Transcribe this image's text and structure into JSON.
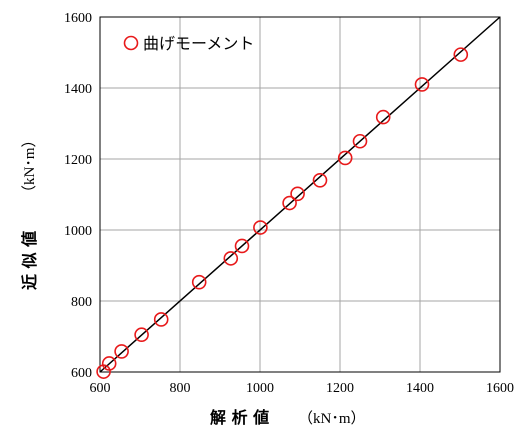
{
  "chart_data": {
    "type": "scatter",
    "xlabel": "解 析 値",
    "ylabel": "近 似 値",
    "unit": "（kN･m）",
    "xlim": [
      600,
      1600
    ],
    "ylim": [
      600,
      1600
    ],
    "x_ticks": [
      "600",
      "800",
      "1000",
      "1200",
      "1400",
      "1600"
    ],
    "y_ticks": [
      "600",
      "800",
      "1000",
      "1200",
      "1400",
      "1600"
    ],
    "grid": true,
    "legend_position": "top-left",
    "reference_line": "y = x",
    "colors": {
      "marker": "#e8191a",
      "line": "#000000",
      "grid": "#a6a6a6"
    },
    "series": [
      {
        "name": "曲げモーメント",
        "marker": "open-circle",
        "points": [
          [
            609,
            601
          ],
          [
            623,
            624
          ],
          [
            654,
            658
          ],
          [
            704,
            705
          ],
          [
            753,
            748
          ],
          [
            848,
            853
          ],
          [
            927,
            920
          ],
          [
            955,
            955
          ],
          [
            1001,
            1007
          ],
          [
            1074,
            1076
          ],
          [
            1094,
            1102
          ],
          [
            1150,
            1140
          ],
          [
            1213,
            1203
          ],
          [
            1250,
            1250
          ],
          [
            1308,
            1318
          ],
          [
            1405,
            1410
          ],
          [
            1502,
            1494
          ]
        ]
      }
    ]
  }
}
